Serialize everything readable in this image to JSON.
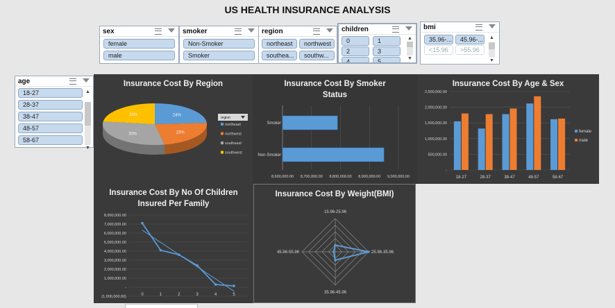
{
  "title": "US  HEALTH INSURANCE ANALYSIS",
  "slicers": {
    "sex": {
      "label": "sex",
      "items": [
        "female",
        "male"
      ]
    },
    "smoker": {
      "label": "smoker",
      "items": [
        "Non-Smoker",
        "Smoker"
      ]
    },
    "region": {
      "label": "region",
      "items": [
        "northeast",
        "northwest",
        "southea...",
        "southw..."
      ]
    },
    "children": {
      "label": "children",
      "items": [
        "0",
        "1",
        "2",
        "3",
        "4",
        "5"
      ]
    },
    "bmi": {
      "label": "bmi",
      "items": [
        "35.96-...",
        "45.96-...",
        "<15.96",
        ">55.96"
      ]
    },
    "age": {
      "label": "age",
      "items": [
        "18-27",
        "28-37",
        "38-47",
        "48-57",
        "58-67"
      ]
    }
  },
  "chart_data": [
    {
      "type": "pie",
      "title": "Insurance Cost By Region",
      "legend_title": "region",
      "legend_placement": "right",
      "categories": [
        "northeast",
        "northwest",
        "southeast",
        "southwest"
      ],
      "values": [
        24,
        23,
        30,
        23
      ],
      "labels": [
        "24%",
        "23%",
        "30%",
        "23%"
      ],
      "colors": [
        "#5b9bd5",
        "#ed7d31",
        "#a5a5a5",
        "#ffc000"
      ]
    },
    {
      "type": "bar",
      "orientation": "horizontal",
      "title": "Insurance Cost By Smoker Status",
      "categories": [
        "Non-Smoker",
        "Smoker"
      ],
      "values": [
        8950000,
        8790000
      ],
      "xlim": [
        8600000,
        9000000
      ],
      "xticks": [
        "8,600,000.00",
        "8,700,000.00",
        "8,800,000.00",
        "8,900,000.00",
        "9,000,000.00"
      ],
      "color": "#5b9bd5"
    },
    {
      "type": "bar",
      "title": "Insurance Cost By Age & Sex",
      "categories": [
        "18-27",
        "28-37",
        "38-47",
        "48-57",
        "58-67"
      ],
      "series": [
        {
          "name": "female",
          "values": [
            1550000,
            1320000,
            1780000,
            2120000,
            1620000
          ],
          "color": "#5b9bd5"
        },
        {
          "name": "male",
          "values": [
            1800000,
            1780000,
            1960000,
            2350000,
            1640000
          ],
          "color": "#ed7d31"
        }
      ],
      "ylim": [
        0,
        2500000
      ],
      "yticks": [
        "-",
        "500,000.00",
        "1,000,000.00",
        "1,500,000.00",
        "2,000,000.00",
        "2,500,000.00"
      ],
      "legend_placement": "right"
    },
    {
      "type": "line",
      "title": "Insurance Cost By No Of Children Insured Per Family",
      "x": [
        0,
        1,
        2,
        3,
        4,
        5
      ],
      "y": [
        7100000,
        4100000,
        3600000,
        2400000,
        300000,
        150000
      ],
      "trendline": true,
      "ylim": [
        -1000000,
        8000000
      ],
      "yticks": [
        "(1,000,000.00)",
        "-",
        "1,000,000.00",
        "2,000,000.00",
        "3,000,000.00",
        "4,000,000.00",
        "5,000,000.00",
        "6,000,000.00",
        "7,000,000.00",
        "8,000,000.00"
      ],
      "xticks": [
        "0",
        "1",
        "2",
        "3",
        "4",
        "5"
      ],
      "color": "#5b9bd5"
    },
    {
      "type": "radar",
      "title": "Insurance Cost By Weight(BMI)",
      "categories": [
        "15.96-25.96",
        "25.96-35.96",
        "35.96-45.96",
        "45.96-55.96"
      ],
      "values": [
        0.2,
        1.0,
        0.25,
        0.05
      ],
      "color": "#5b9bd5"
    }
  ]
}
